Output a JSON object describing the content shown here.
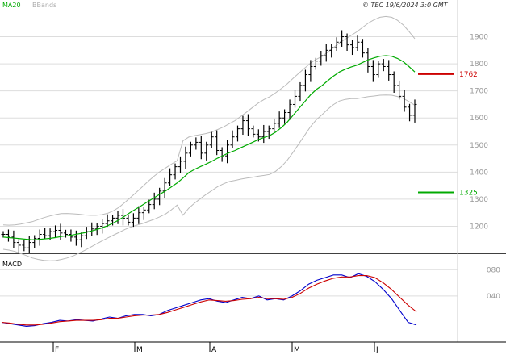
{
  "chart_data": [
    {
      "type": "ohlc",
      "legend": [
        {
          "name": "MA20",
          "color": "#00aa00"
        },
        {
          "name": "BBands",
          "color": "#aaaaaa"
        }
      ],
      "copyright": "© TEC 19/6/2024 3:0 GMT",
      "y_ticks": [
        "1200",
        "1300",
        "1400",
        "1500",
        "1600",
        "1700",
        "1800",
        "1900"
      ],
      "x_ticks": [
        "F",
        "M",
        "A",
        "M",
        "J"
      ],
      "ylim": [
        1100,
        2000
      ],
      "levels": [
        {
          "value": 1762,
          "label": "1762",
          "color": "#cc0000"
        },
        {
          "value": 1325,
          "label": "1325",
          "color": "#00aa00"
        }
      ],
      "closes": [
        1170,
        1160,
        1140,
        1130,
        1120,
        1140,
        1155,
        1170,
        1165,
        1180,
        1185,
        1175,
        1170,
        1160,
        1150,
        1165,
        1180,
        1190,
        1200,
        1210,
        1220,
        1230,
        1240,
        1230,
        1215,
        1230,
        1250,
        1260,
        1280,
        1300,
        1330,
        1360,
        1390,
        1420,
        1440,
        1470,
        1500,
        1510,
        1470,
        1500,
        1530,
        1480,
        1460,
        1500,
        1530,
        1560,
        1590,
        1560,
        1540,
        1530,
        1550,
        1560,
        1580,
        1600,
        1620,
        1650,
        1680,
        1720,
        1760,
        1790,
        1810,
        1830,
        1850,
        1860,
        1880,
        1900,
        1870,
        1860,
        1880,
        1840,
        1790,
        1760,
        1800,
        1790,
        1760,
        1720,
        1680,
        1640,
        1610,
        1650
      ],
      "ma20": [
        1160,
        1158,
        1156,
        1154,
        1152,
        1150,
        1151,
        1153,
        1155,
        1158,
        1162,
        1165,
        1168,
        1172,
        1176,
        1181,
        1187,
        1194,
        1202,
        1212,
        1224,
        1238,
        1252,
        1265,
        1278,
        1292,
        1305,
        1318,
        1330,
        1345,
        1360,
        1378,
        1398,
        1410,
        1420,
        1430,
        1440,
        1452,
        1462,
        1472,
        1480,
        1490,
        1500,
        1510,
        1520,
        1528,
        1535,
        1548,
        1565,
        1585,
        1610,
        1635,
        1660,
        1685,
        1705,
        1720,
        1738,
        1755,
        1770,
        1780,
        1788,
        1795,
        1805,
        1815,
        1822,
        1828,
        1830,
        1828,
        1820,
        1808,
        1790,
        1770
      ]
    },
    {
      "type": "line",
      "title": "MACD",
      "y_ticks": [
        "040",
        "080"
      ],
      "series": [
        {
          "name": "",
          "color": "#0000cc",
          "values": [
            0,
            -2,
            -4,
            -6,
            -5,
            -2,
            0,
            3,
            2,
            4,
            3,
            2,
            5,
            8,
            6,
            10,
            12,
            12,
            10,
            12,
            18,
            22,
            26,
            30,
            34,
            36,
            32,
            30,
            34,
            38,
            36,
            40,
            34,
            36,
            34,
            40,
            48,
            58,
            64,
            68,
            72,
            72,
            68,
            74,
            70,
            62,
            50,
            36,
            18,
            0,
            -4
          ]
        },
        {
          "name": "",
          "color": "#cc0000",
          "values": [
            0,
            -1,
            -3,
            -4,
            -4,
            -3,
            -1,
            1,
            2,
            3,
            3,
            3,
            4,
            6,
            6,
            8,
            10,
            11,
            11,
            12,
            15,
            19,
            23,
            27,
            31,
            34,
            33,
            32,
            33,
            35,
            36,
            38,
            36,
            36,
            35,
            38,
            44,
            52,
            58,
            63,
            67,
            69,
            69,
            71,
            71,
            68,
            60,
            50,
            38,
            26,
            16
          ]
        }
      ]
    }
  ]
}
